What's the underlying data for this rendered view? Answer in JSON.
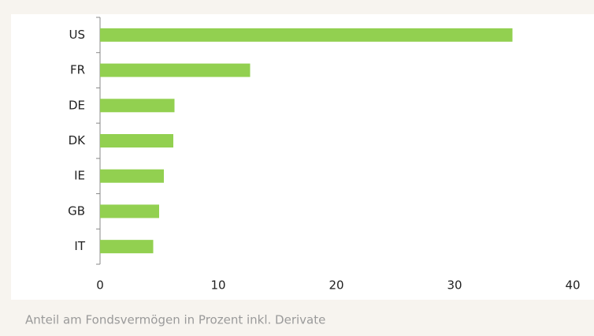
{
  "chart_data": {
    "type": "barh",
    "categories": [
      "US",
      "FR",
      "DE",
      "DK",
      "IE",
      "GB",
      "IT"
    ],
    "values": [
      34.9,
      12.7,
      6.3,
      6.2,
      5.4,
      5.0,
      4.5
    ],
    "color": "#92d050",
    "xlim": [
      0,
      40
    ],
    "xticks": [
      0,
      10,
      20,
      30,
      40
    ],
    "grid": false,
    "caption": "Anteil am Fondsvermögen in Prozent inkl. Derivate"
  }
}
